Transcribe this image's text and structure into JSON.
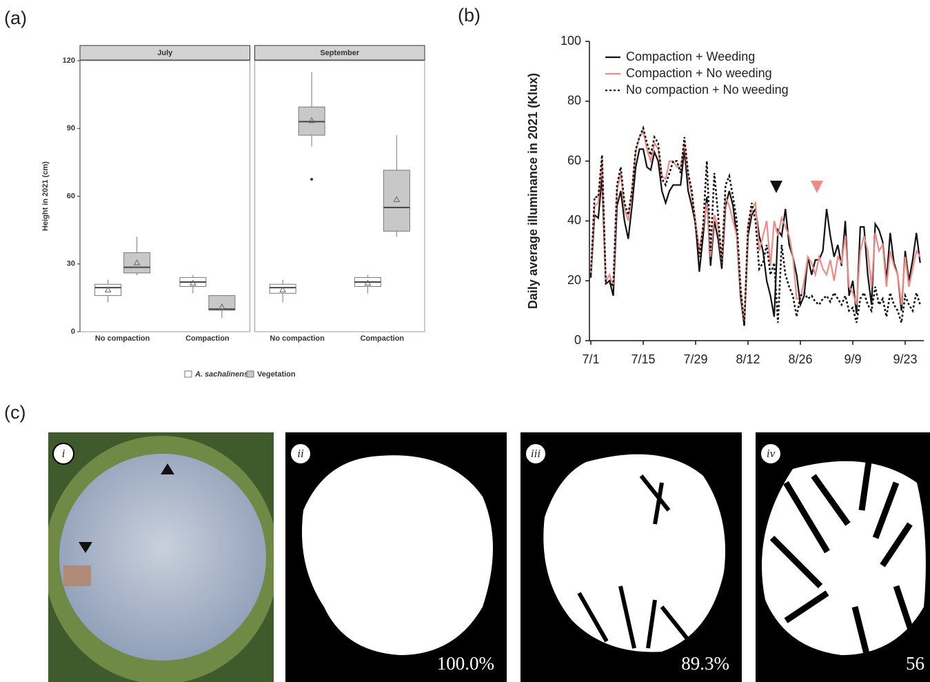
{
  "panels": [
    "(a)",
    "(b)",
    "(c)"
  ],
  "chart_data": [
    {
      "type": "boxplot",
      "y_label": "Height in 2021 (cm)",
      "facets": [
        "July",
        "September"
      ],
      "categories": [
        "No compaction",
        "Compaction"
      ],
      "ylim": [
        0,
        120
      ],
      "yticks": [
        0,
        30,
        60,
        90,
        120
      ],
      "series": [
        {
          "name": "A. sachalinensis",
          "color": "#ffffff",
          "boxes": [
            {
              "min": 13,
              "q1": 16,
              "median": 19.5,
              "q3": 21,
              "max": 23,
              "mean": 18.5,
              "outliers": []
            },
            {
              "min": 17,
              "q1": 20,
              "median": 22,
              "q3": 24,
              "max": 25,
              "mean": 21.5,
              "outliers": []
            },
            {
              "min": 13,
              "q1": 17,
              "median": 19.5,
              "q3": 21,
              "max": 23,
              "mean": 18.5,
              "outliers": []
            },
            {
              "min": 17,
              "q1": 20,
              "median": 22,
              "q3": 24,
              "max": 25,
              "mean": 21.5,
              "outliers": []
            }
          ]
        },
        {
          "name": "Vegetation",
          "color": "#c8c8c8",
          "boxes": [
            {
              "min": 25,
              "q1": 26,
              "median": 28.5,
              "q3": 35,
              "max": 42,
              "mean": 30.5,
              "outliers": []
            },
            {
              "min": 6,
              "q1": 9.5,
              "median": 10,
              "q3": 16,
              "max": 16,
              "mean": 11,
              "outliers": []
            },
            {
              "min": 82,
              "q1": 87,
              "median": 93,
              "q3": 99.5,
              "max": 115,
              "mean": 93.5,
              "outliers": [
                67.5
              ]
            },
            {
              "min": 42,
              "q1": 44.5,
              "median": 55,
              "q3": 71.5,
              "max": 87,
              "mean": 58.5,
              "outliers": []
            }
          ]
        }
      ]
    },
    {
      "type": "line",
      "y_label": "Daily average illuminance in 2021 (Klux)",
      "ylim": [
        0,
        100
      ],
      "yticks": [
        0,
        20,
        40,
        60,
        80,
        100
      ],
      "legend": "upper left",
      "categories": [
        "7/1",
        null,
        null,
        null,
        null,
        null,
        null,
        null,
        null,
        null,
        null,
        null,
        null,
        null,
        "7/15",
        null,
        null,
        null,
        null,
        null,
        null,
        null,
        null,
        null,
        null,
        null,
        null,
        null,
        "7/29",
        null,
        null,
        null,
        null,
        null,
        null,
        null,
        null,
        null,
        null,
        null,
        null,
        null,
        "8/12",
        null,
        null,
        null,
        null,
        null,
        null,
        null,
        null,
        null,
        null,
        null,
        null,
        null,
        "8/26",
        null,
        null,
        null,
        null,
        null,
        null,
        null,
        null,
        null,
        null,
        null,
        null,
        null,
        "9/9",
        null,
        null,
        null,
        null,
        null,
        null,
        null,
        null,
        null,
        null,
        null,
        null,
        null,
        "9/23",
        null,
        null,
        null,
        null
      ],
      "series": [
        {
          "name": "Compaction + Weeding",
          "color": "#111111",
          "linestyle": "solid",
          "values": [
            21,
            42,
            41,
            55,
            19,
            20,
            15,
            45,
            50,
            40,
            34,
            45,
            58,
            64,
            64,
            58,
            57,
            63,
            60,
            50,
            46,
            50,
            52,
            52,
            52,
            64,
            50,
            45,
            39,
            23,
            35,
            48,
            25,
            40,
            34,
            24,
            45,
            50,
            45,
            35,
            15,
            5,
            35,
            42,
            44,
            35,
            30,
            20,
            15,
            8,
            37,
            35,
            44,
            32,
            28,
            22,
            12,
            15,
            28,
            22,
            27,
            27,
            30,
            44,
            35,
            28,
            32,
            25,
            40,
            15,
            20,
            9,
            38,
            38,
            22,
            12,
            39,
            37,
            33,
            20,
            36,
            26,
            22,
            10,
            30,
            20,
            27,
            36,
            26
          ]
        },
        {
          "name": "Compaction + No weeding",
          "color": "#f08a86",
          "linestyle": "solid",
          "values": [
            22,
            45,
            46,
            60,
            20,
            22,
            18,
            50,
            56,
            44,
            40,
            50,
            63,
            68,
            70,
            64,
            60,
            66,
            64,
            55,
            54,
            60,
            60,
            58,
            58,
            66,
            55,
            48,
            40,
            30,
            38,
            46,
            28,
            42,
            38,
            26,
            48,
            45,
            40,
            35,
            17,
            6,
            38,
            44,
            46,
            30,
            35,
            40,
            25,
            40,
            35,
            41,
            38,
            35,
            28,
            14,
            14,
            20,
            28,
            26,
            22,
            28,
            24,
            22,
            27,
            20,
            28,
            26,
            35,
            18,
            16,
            12,
            30,
            35,
            30,
            18,
            36,
            30,
            32,
            18,
            30,
            25,
            22,
            12,
            28,
            18,
            24,
            30,
            28
          ]
        },
        {
          "name": "No compaction + No weeding",
          "color": "#111111",
          "linestyle": "dotted",
          "values": [
            22,
            48,
            48,
            62,
            20,
            20,
            18,
            52,
            58,
            46,
            42,
            50,
            64,
            68,
            71,
            66,
            62,
            68,
            66,
            54,
            52,
            56,
            60,
            60,
            56,
            68,
            56,
            50,
            38,
            28,
            38,
            60,
            30,
            56,
            42,
            26,
            52,
            55,
            48,
            40,
            18,
            5,
            38,
            46,
            40,
            24,
            26,
            32,
            22,
            26,
            6,
            32,
            22,
            18,
            15,
            8,
            15,
            16,
            14,
            15,
            13,
            12,
            14,
            15,
            13,
            16,
            14,
            12,
            15,
            10,
            11,
            6,
            14,
            16,
            12,
            10,
            18,
            12,
            14,
            8,
            16,
            12,
            10,
            6,
            15,
            12,
            10,
            16,
            12
          ]
        }
      ]
    }
  ],
  "photos": [
    {
      "label": "i"
    },
    {
      "label": "ii",
      "percent": "100.0%"
    },
    {
      "label": "iii",
      "percent": "89.3%"
    },
    {
      "label": "iv",
      "percent": "56"
    }
  ]
}
